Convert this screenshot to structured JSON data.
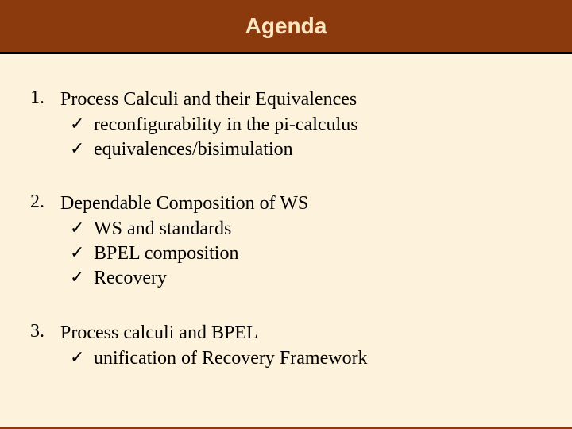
{
  "colors": {
    "header_bg": "#8b3a0e",
    "title_text": "#fbe6c2",
    "body_bg": "#fdf2dc",
    "body_text": "#000000",
    "divider": "#000000"
  },
  "typography": {
    "title_font": "Verdana",
    "title_size_pt": 22,
    "title_weight": "bold",
    "body_font": "Times New Roman",
    "body_size_pt": 18,
    "check_glyph": "✓"
  },
  "slide": {
    "title": "Agenda",
    "items": [
      {
        "number": "1.",
        "heading": "Process Calculi and their Equivalences",
        "subitems": [
          "reconfigurability in the pi-calculus",
          "equivalences/bisimulation"
        ]
      },
      {
        "number": "2.",
        "heading": "Dependable Composition of WS",
        "subitems": [
          "WS and standards",
          "BPEL composition",
          "Recovery"
        ]
      },
      {
        "number": "3.",
        "heading": "Process calculi and BPEL",
        "subitems": [
          "unification of Recovery Framework"
        ]
      }
    ]
  }
}
